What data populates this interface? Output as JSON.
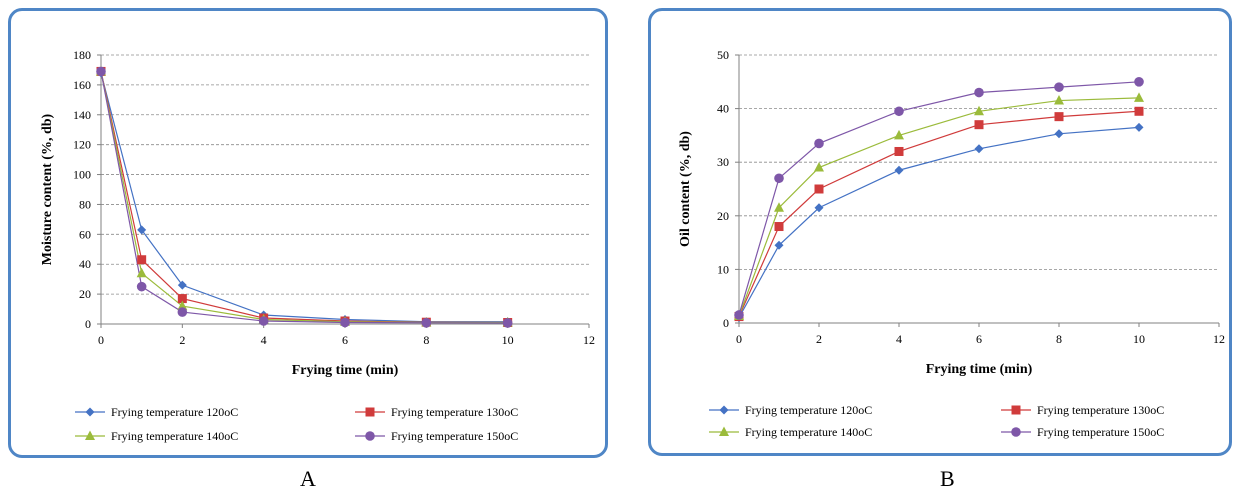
{
  "labels": {
    "a": "A",
    "b": "B"
  },
  "colors": {
    "frame": "#4f86c6",
    "s120": "#4472c4",
    "s130": "#d03b3b",
    "s140": "#9bbb3b",
    "s150": "#7e57a8"
  },
  "chart_data": [
    {
      "type": "line",
      "xlabel": "Frying time (min)",
      "ylabel": "Moisture content (%, db)",
      "xlim": [
        0,
        12
      ],
      "ylim": [
        0,
        180
      ],
      "xticks": [
        0,
        2,
        4,
        6,
        8,
        10,
        12
      ],
      "yticks": [
        0,
        20,
        40,
        60,
        80,
        100,
        120,
        140,
        160,
        180
      ],
      "grid": "horizontal dashed",
      "legend_position": "bottom",
      "x": [
        0,
        1,
        2,
        4,
        6,
        8,
        10
      ],
      "series": [
        {
          "name": "Frying temperature 120oC",
          "marker": "diamond",
          "color": "#4472c4",
          "values": [
            168,
            63,
            26,
            6,
            3,
            1.5,
            1.5
          ]
        },
        {
          "name": "Frying temperature 130oC",
          "marker": "square",
          "color": "#d03b3b",
          "values": [
            169,
            43,
            17,
            4,
            2,
            1.2,
            1
          ]
        },
        {
          "name": "Frying temperature 140oC",
          "marker": "triangle",
          "color": "#9bbb3b",
          "values": [
            169,
            34,
            12,
            3,
            1.5,
            1,
            1
          ]
        },
        {
          "name": "Frying temperature 150oC",
          "marker": "circle",
          "color": "#7e57a8",
          "values": [
            169,
            25,
            8,
            2,
            1,
            0.8,
            0.7
          ]
        }
      ]
    },
    {
      "type": "line",
      "xlabel": "Frying time (min)",
      "ylabel": "Oil content (%, db)",
      "xlim": [
        0,
        12
      ],
      "ylim": [
        0,
        50
      ],
      "xticks": [
        0,
        2,
        4,
        6,
        8,
        10,
        12
      ],
      "yticks": [
        0,
        10,
        20,
        30,
        40,
        50
      ],
      "grid": "horizontal dashed",
      "legend_position": "bottom",
      "x": [
        0,
        1,
        2,
        4,
        6,
        8,
        10
      ],
      "series": [
        {
          "name": "Frying temperature 120oC",
          "marker": "diamond",
          "color": "#4472c4",
          "values": [
            1,
            14.5,
            21.5,
            28.5,
            32.5,
            35.3,
            36.5
          ]
        },
        {
          "name": "Frying temperature 130oC",
          "marker": "square",
          "color": "#d03b3b",
          "values": [
            1.2,
            18,
            25,
            32,
            37,
            38.5,
            39.5
          ]
        },
        {
          "name": "Frying temperature 140oC",
          "marker": "triangle",
          "color": "#9bbb3b",
          "values": [
            1.3,
            21.5,
            29,
            35,
            39.5,
            41.5,
            42
          ]
        },
        {
          "name": "Frying temperature 150oC",
          "marker": "circle",
          "color": "#7e57a8",
          "values": [
            1.5,
            27,
            33.5,
            39.5,
            43,
            44,
            45
          ]
        }
      ]
    }
  ]
}
